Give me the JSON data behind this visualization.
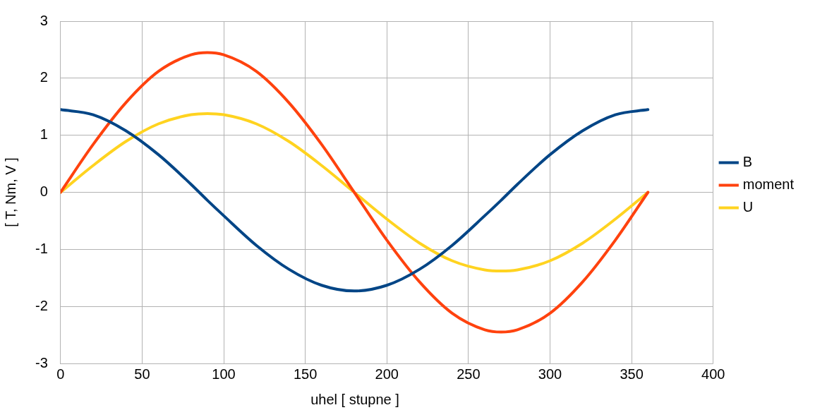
{
  "chart_data": {
    "type": "line",
    "xlabel": "uhel [ stupne ]",
    "ylabel": "[ T, Nm, V ]",
    "x": [
      0,
      20,
      40,
      60,
      80,
      90,
      100,
      120,
      140,
      160,
      180,
      200,
      220,
      240,
      260,
      270,
      280,
      300,
      320,
      340,
      360
    ],
    "series": [
      {
        "name": "B",
        "color": "#004586",
        "values": [
          1.45,
          1.36,
          1.08,
          0.66,
          0.14,
          -0.14,
          -0.41,
          -0.93,
          -1.35,
          -1.63,
          -1.73,
          -1.63,
          -1.35,
          -0.93,
          -0.41,
          -0.14,
          0.14,
          0.66,
          1.08,
          1.36,
          1.45
        ]
      },
      {
        "name": "moment",
        "color": "#ff420e",
        "values": [
          0,
          0.84,
          1.57,
          2.12,
          2.41,
          2.45,
          2.41,
          2.12,
          1.57,
          0.84,
          0,
          -0.84,
          -1.57,
          -2.12,
          -2.41,
          -2.45,
          -2.41,
          -2.12,
          -1.57,
          -0.84,
          0
        ]
      },
      {
        "name": "U",
        "color": "#ffd320",
        "values": [
          0,
          0.47,
          0.89,
          1.2,
          1.36,
          1.38,
          1.36,
          1.2,
          0.89,
          0.47,
          0,
          -0.47,
          -0.89,
          -1.2,
          -1.36,
          -1.38,
          -1.36,
          -1.2,
          -0.89,
          -0.47,
          0
        ]
      }
    ],
    "xlim": [
      0,
      400
    ],
    "xticks": [
      0,
      50,
      100,
      150,
      200,
      250,
      300,
      350,
      400
    ],
    "ylim": [
      -3,
      3
    ],
    "yticks": [
      -3,
      -2,
      -1,
      0,
      1,
      2,
      3
    ],
    "grid": true,
    "legend": "right",
    "marker": "none",
    "line_style": "solid"
  }
}
